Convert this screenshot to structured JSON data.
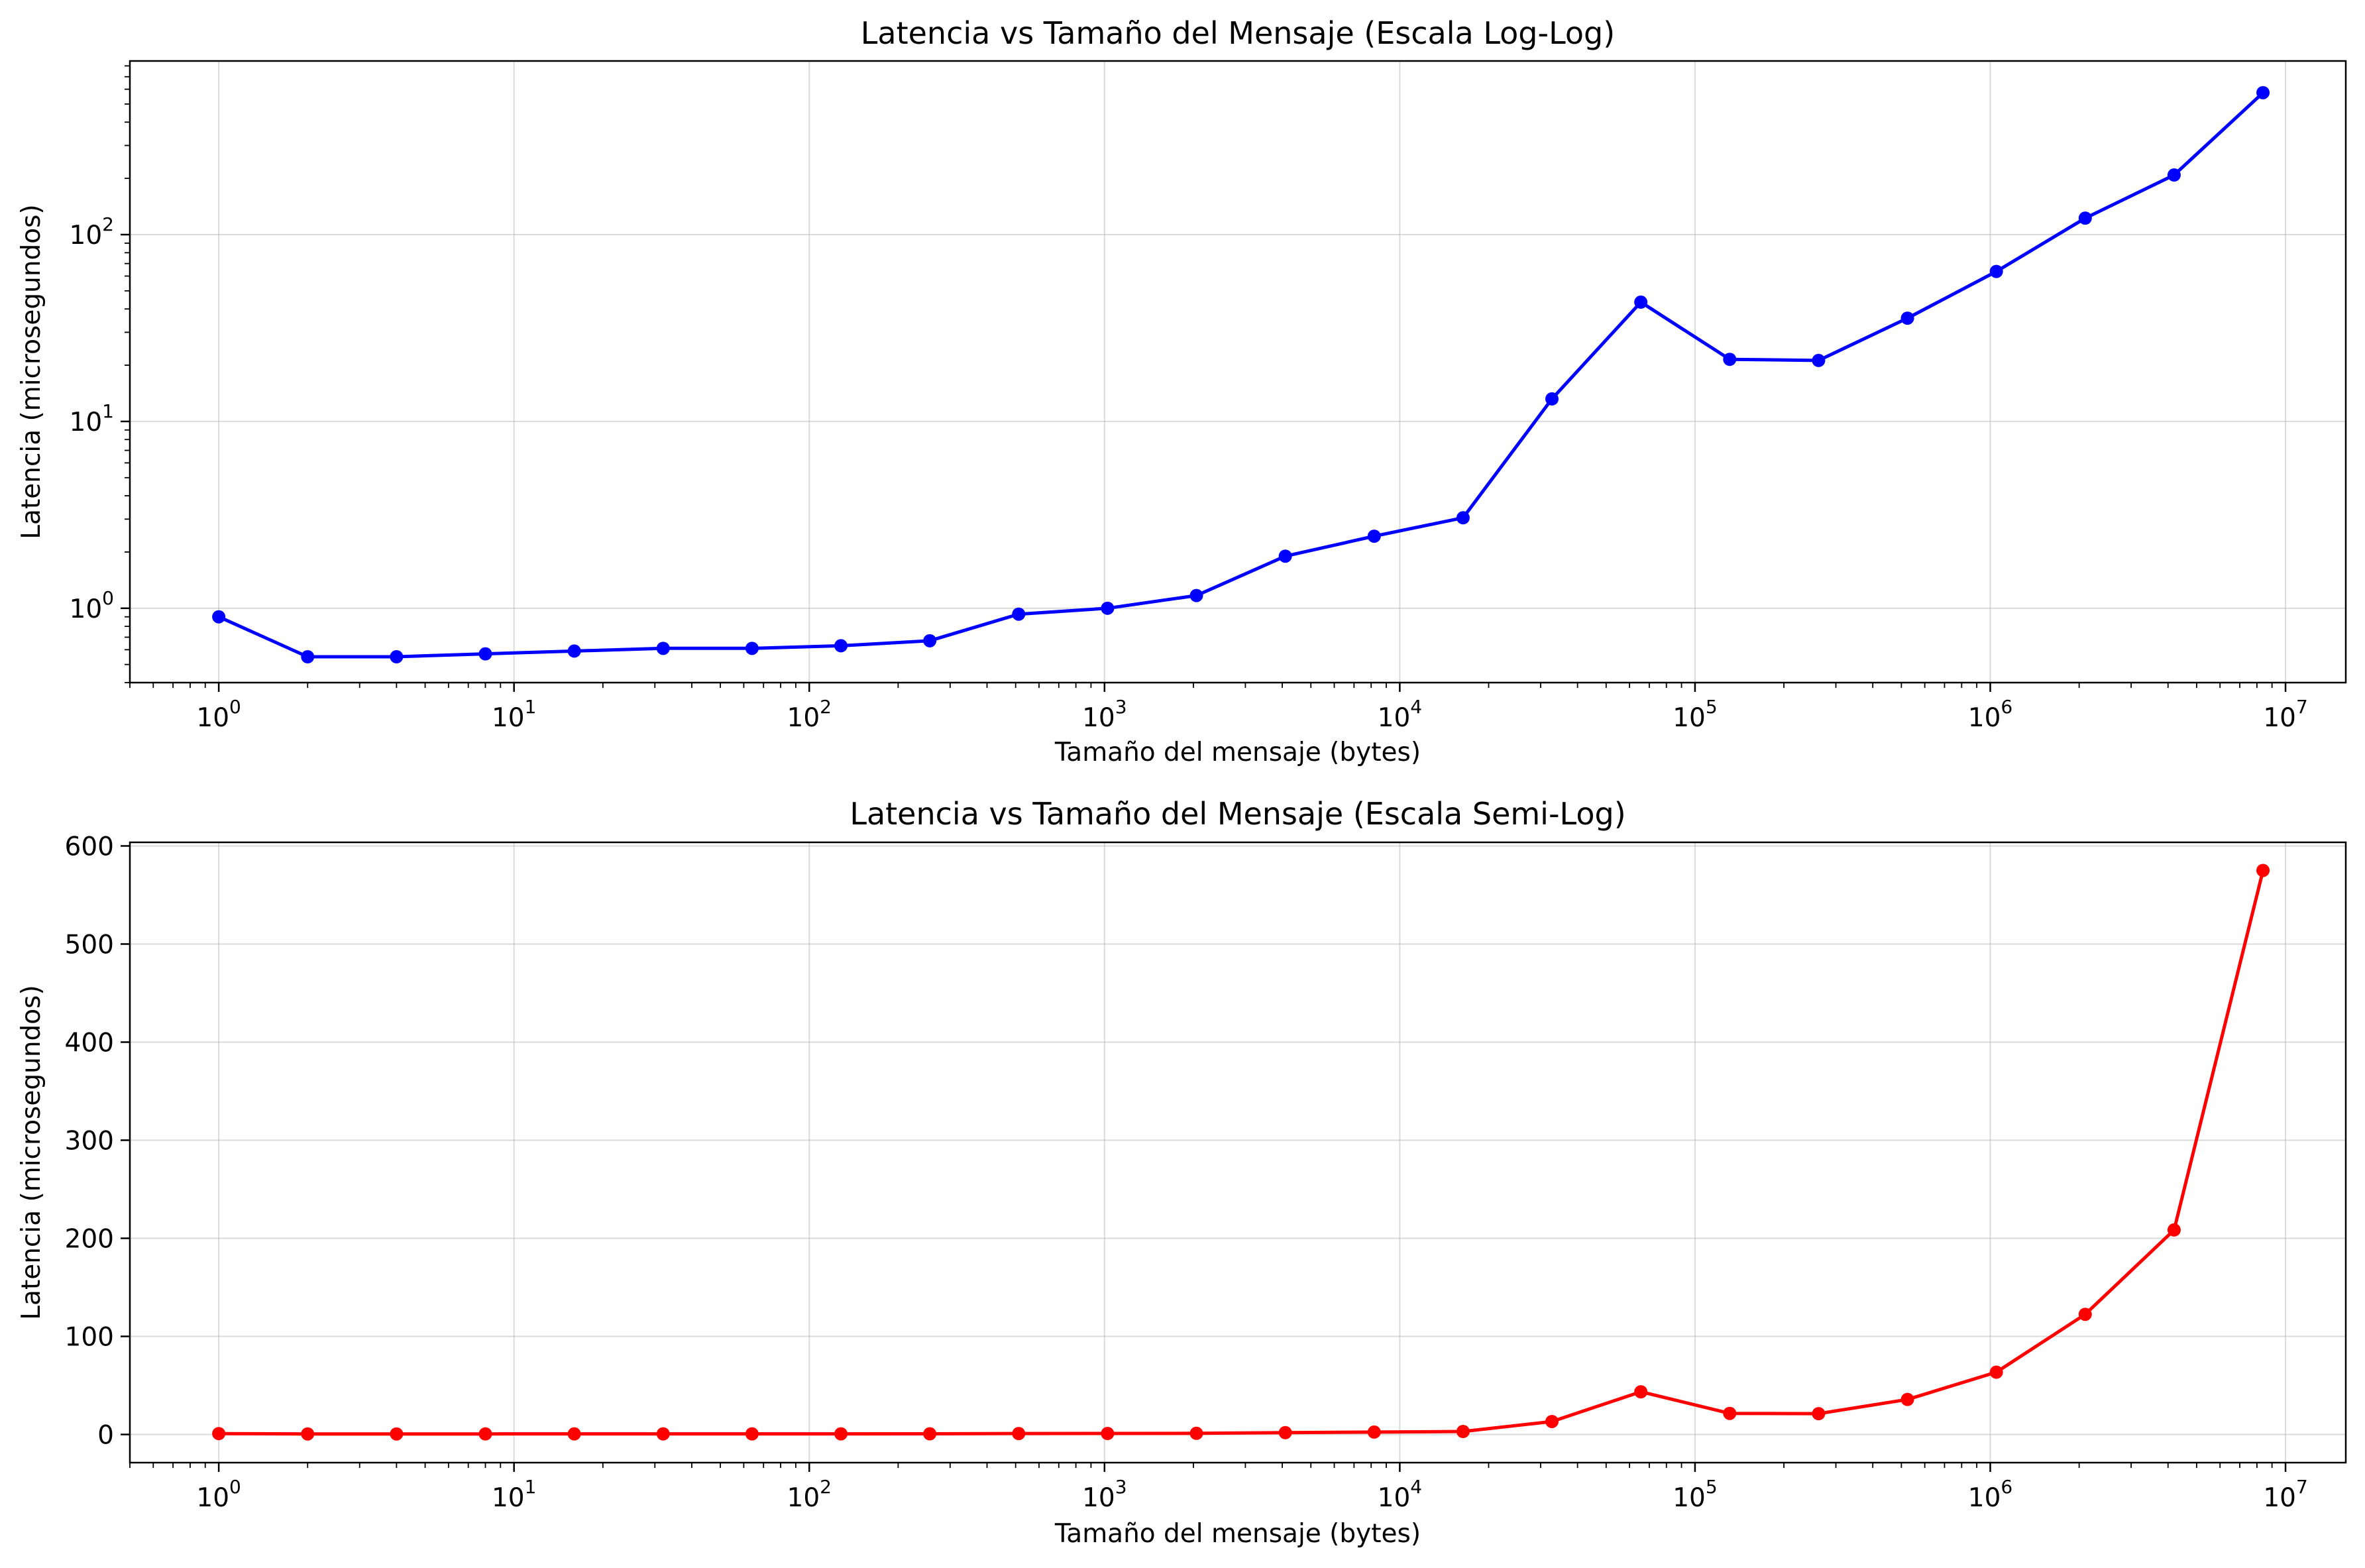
{
  "chart_data": [
    {
      "type": "line",
      "title": "Latencia vs Tamaño del Mensaje (Escala Log-Log)",
      "xlabel": "Tamaño del mensaje (bytes)",
      "ylabel": "Latencia (microsegundos)",
      "xscale": "log",
      "yscale": "log",
      "xlim": [
        0.5,
        16000000
      ],
      "ylim": [
        0.4,
        850
      ],
      "x_ticks": [
        1,
        10,
        100,
        1000,
        10000,
        100000,
        1000000,
        10000000
      ],
      "x_tick_labels": [
        [
          "10",
          "0"
        ],
        [
          "10",
          "1"
        ],
        [
          "10",
          "2"
        ],
        [
          "10",
          "3"
        ],
        [
          "10",
          "4"
        ],
        [
          "10",
          "5"
        ],
        [
          "10",
          "6"
        ],
        [
          "10",
          "7"
        ]
      ],
      "y_ticks": [
        1,
        10,
        100
      ],
      "y_tick_labels": [
        [
          "10",
          "0"
        ],
        [
          "10",
          "1"
        ],
        [
          "10",
          "2"
        ]
      ],
      "grid": true,
      "color": "#0000ff",
      "series": [
        {
          "x": [
            1,
            2,
            4,
            8,
            16,
            32,
            64,
            128,
            256,
            512,
            1024,
            2048,
            4096,
            8192,
            16384,
            32768,
            65536,
            131072,
            262144,
            524288,
            1048576,
            2097152,
            4194304,
            8388608
          ],
          "y": [
            0.9,
            0.55,
            0.55,
            0.57,
            0.59,
            0.61,
            0.61,
            0.63,
            0.67,
            0.93,
            1.0,
            1.17,
            1.9,
            2.43,
            3.05,
            13.2,
            43.5,
            21.5,
            21.2,
            35.7,
            63.5,
            122.5,
            208.5,
            575
          ]
        }
      ]
    },
    {
      "type": "line",
      "title": "Latencia vs Tamaño del Mensaje (Escala Semi-Log)",
      "xlabel": "Tamaño del mensaje (bytes)",
      "ylabel": "Latencia (microsegundos)",
      "xscale": "log",
      "yscale": "linear",
      "xlim": [
        0.5,
        16000000
      ],
      "ylim": [
        -28.7,
        603.7
      ],
      "x_ticks": [
        1,
        10,
        100,
        1000,
        10000,
        100000,
        1000000,
        10000000
      ],
      "x_tick_labels": [
        [
          "10",
          "0"
        ],
        [
          "10",
          "1"
        ],
        [
          "10",
          "2"
        ],
        [
          "10",
          "3"
        ],
        [
          "10",
          "4"
        ],
        [
          "10",
          "5"
        ],
        [
          "10",
          "6"
        ],
        [
          "10",
          "7"
        ]
      ],
      "y_ticks": [
        0,
        100,
        200,
        300,
        400,
        500,
        600
      ],
      "y_tick_labels": [
        [
          "0",
          ""
        ],
        [
          "100",
          ""
        ],
        [
          "200",
          ""
        ],
        [
          "300",
          ""
        ],
        [
          "400",
          ""
        ],
        [
          "500",
          ""
        ],
        [
          "600",
          ""
        ]
      ],
      "grid": true,
      "color": "#ff0000",
      "series": [
        {
          "x": [
            1,
            2,
            4,
            8,
            16,
            32,
            64,
            128,
            256,
            512,
            1024,
            2048,
            4096,
            8192,
            16384,
            32768,
            65536,
            131072,
            262144,
            524288,
            1048576,
            2097152,
            4194304,
            8388608
          ],
          "y": [
            0.9,
            0.55,
            0.55,
            0.57,
            0.59,
            0.61,
            0.61,
            0.63,
            0.67,
            0.93,
            1.0,
            1.17,
            1.9,
            2.43,
            3.05,
            13.2,
            43.5,
            21.5,
            21.2,
            35.7,
            63.5,
            122.5,
            208.5,
            575
          ]
        }
      ]
    }
  ]
}
